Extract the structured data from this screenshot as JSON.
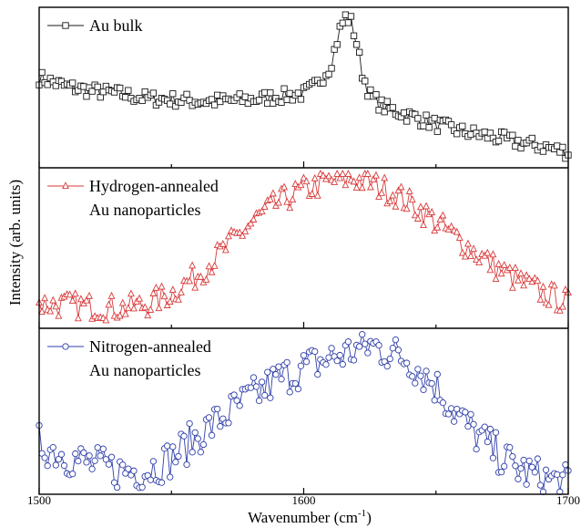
{
  "chart_data": {
    "type": "scatter",
    "xlabel": "Wavenumber (cm",
    "xlabel_superscript": "-1",
    "xlabel_close": ")",
    "ylabel": "Intensity (arb. units)",
    "xlim": [
      1500,
      1700
    ],
    "x_ticks": [
      "1500",
      "1600",
      "1700"
    ],
    "y_ticks_shown": false,
    "grid": false,
    "legend_placement": "top-left of each panel",
    "panels": [
      {
        "legend_lines": [
          "Au bulk"
        ],
        "marker": "square",
        "color": "#1a1a1a",
        "peak_cm": 1615,
        "x": [
          1500,
          1510,
          1520,
          1530,
          1540,
          1550,
          1560,
          1570,
          1580,
          1590,
          1600,
          1605,
          1610,
          1612,
          1614,
          1616,
          1618,
          1620,
          1622,
          1625,
          1630,
          1640,
          1650,
          1660,
          1670,
          1680,
          1690,
          1700
        ],
        "y": [
          0.58,
          0.52,
          0.49,
          0.47,
          0.44,
          0.43,
          0.42,
          0.42,
          0.43,
          0.45,
          0.47,
          0.53,
          0.66,
          0.79,
          0.93,
          1.0,
          0.96,
          0.82,
          0.62,
          0.46,
          0.38,
          0.32,
          0.26,
          0.21,
          0.18,
          0.14,
          0.11,
          0.07
        ]
      },
      {
        "legend_lines": [
          "Hydrogen-annealed",
          "Au nanoparticles"
        ],
        "marker": "triangle",
        "color": "#d93a3a",
        "peak_cm": 1618,
        "x": [
          1500,
          1510,
          1520,
          1530,
          1540,
          1550,
          1560,
          1570,
          1580,
          1590,
          1600,
          1610,
          1618,
          1625,
          1635,
          1645,
          1655,
          1665,
          1675,
          1685,
          1695,
          1700
        ],
        "y": [
          0.13,
          0.12,
          0.11,
          0.1,
          0.12,
          0.2,
          0.33,
          0.5,
          0.68,
          0.82,
          0.91,
          0.97,
          0.99,
          0.96,
          0.88,
          0.76,
          0.62,
          0.48,
          0.35,
          0.25,
          0.17,
          0.14
        ]
      },
      {
        "legend_lines": [
          "Nitrogen-annealed",
          "Au nanoparticles"
        ],
        "marker": "circle",
        "color": "#2f3fa8",
        "peak_cm": 1625,
        "x": [
          1500,
          1510,
          1520,
          1530,
          1540,
          1550,
          1560,
          1570,
          1580,
          1590,
          1600,
          1610,
          1620,
          1625,
          1630,
          1640,
          1650,
          1660,
          1670,
          1680,
          1690,
          1700
        ],
        "y": [
          0.3,
          0.22,
          0.16,
          0.12,
          0.12,
          0.2,
          0.35,
          0.48,
          0.6,
          0.72,
          0.8,
          0.86,
          0.92,
          0.95,
          0.92,
          0.85,
          0.68,
          0.45,
          0.28,
          0.14,
          0.07,
          0.03
        ]
      }
    ]
  }
}
